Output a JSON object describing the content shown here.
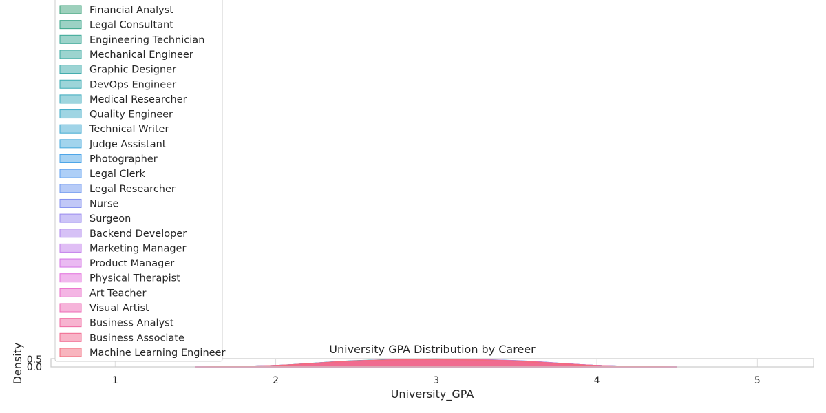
{
  "chart_data": {
    "type": "area",
    "title": "University GPA Distribution by Career",
    "xlabel": "University_GPA",
    "ylabel": "Density",
    "xlim": [
      0.6,
      5.35
    ],
    "ylim": [
      0,
      0.55
    ],
    "xticks": [
      "1",
      "2",
      "3",
      "4",
      "5"
    ],
    "yticks": [
      "0.0",
      "0.5"
    ],
    "grid": true,
    "legend_placement": "upper-left",
    "series": [
      {
        "name": "Financial Analyst",
        "color": "#3ba27a",
        "x": [
          1.5,
          2.0,
          2.5,
          3.0,
          3.5,
          4.0,
          4.5
        ],
        "y": [
          0.0,
          0.09,
          0.4,
          0.55,
          0.38,
          0.08,
          0.0
        ]
      },
      {
        "name": "Legal Consultant",
        "color": "#3aa58a",
        "x": [
          1.5,
          2.0,
          2.5,
          3.0,
          3.5,
          4.0,
          4.5
        ],
        "y": [
          0.0,
          0.08,
          0.38,
          0.52,
          0.4,
          0.1,
          0.0
        ]
      },
      {
        "name": "Engineering Technician",
        "color": "#39a795",
        "x": [
          1.5,
          2.0,
          2.5,
          3.0,
          3.5,
          4.0,
          4.5
        ],
        "y": [
          0.0,
          0.1,
          0.42,
          0.5,
          0.36,
          0.08,
          0.0
        ]
      },
      {
        "name": "Mechanical Engineer",
        "color": "#39a9a0",
        "x": [
          1.5,
          2.0,
          2.5,
          3.0,
          3.5,
          4.0,
          4.5
        ],
        "y": [
          0.0,
          0.08,
          0.37,
          0.51,
          0.39,
          0.09,
          0.0
        ]
      },
      {
        "name": "Graphic Designer",
        "color": "#3aaaaa",
        "x": [
          1.5,
          2.0,
          2.5,
          3.0,
          3.5,
          4.0,
          4.5
        ],
        "y": [
          0.0,
          0.09,
          0.39,
          0.49,
          0.4,
          0.1,
          0.0
        ]
      },
      {
        "name": "DevOps Engineer",
        "color": "#3babb3",
        "x": [
          1.5,
          2.0,
          2.5,
          3.0,
          3.5,
          4.0,
          4.5
        ],
        "y": [
          0.0,
          0.07,
          0.36,
          0.52,
          0.41,
          0.1,
          0.0
        ]
      },
      {
        "name": "Medical Researcher",
        "color": "#3dabbd",
        "x": [
          1.5,
          2.0,
          2.5,
          3.0,
          3.5,
          4.0,
          4.5
        ],
        "y": [
          0.0,
          0.1,
          0.4,
          0.5,
          0.37,
          0.08,
          0.0
        ]
      },
      {
        "name": "Quality Engineer",
        "color": "#3fabc7",
        "x": [
          1.5,
          2.0,
          2.5,
          3.0,
          3.5,
          4.0,
          4.5
        ],
        "y": [
          0.0,
          0.08,
          0.38,
          0.51,
          0.39,
          0.09,
          0.0
        ]
      },
      {
        "name": "Technical Writer",
        "color": "#42aad1",
        "x": [
          1.5,
          2.0,
          2.5,
          3.0,
          3.5,
          4.0,
          4.5
        ],
        "y": [
          0.0,
          0.09,
          0.37,
          0.5,
          0.4,
          0.1,
          0.0
        ]
      },
      {
        "name": "Judge Assistant",
        "color": "#46a9dc",
        "x": [
          1.5,
          2.0,
          2.5,
          3.0,
          3.5,
          4.0,
          4.5
        ],
        "y": [
          0.0,
          0.08,
          0.39,
          0.52,
          0.38,
          0.09,
          0.0
        ]
      },
      {
        "name": "Photographer",
        "color": "#4ea6e8",
        "x": [
          1.5,
          2.0,
          2.5,
          3.0,
          3.5,
          4.0,
          4.5
        ],
        "y": [
          0.0,
          0.1,
          0.41,
          0.5,
          0.37,
          0.08,
          0.0
        ]
      },
      {
        "name": "Legal Clerk",
        "color": "#5e9ff0",
        "x": [
          1.5,
          2.0,
          2.5,
          3.0,
          3.5,
          4.0,
          4.5
        ],
        "y": [
          0.0,
          0.08,
          0.36,
          0.51,
          0.42,
          0.1,
          0.0
        ]
      },
      {
        "name": "Legal Researcher",
        "color": "#7098f0",
        "x": [
          1.5,
          2.0,
          2.5,
          3.0,
          3.5,
          4.0,
          4.5
        ],
        "y": [
          0.0,
          0.09,
          0.38,
          0.5,
          0.4,
          0.09,
          0.0
        ]
      },
      {
        "name": "Nurse",
        "color": "#8491f0",
        "x": [
          1.5,
          2.0,
          2.5,
          3.0,
          3.5,
          4.0,
          4.5
        ],
        "y": [
          0.0,
          0.08,
          0.37,
          0.52,
          0.39,
          0.1,
          0.0
        ]
      },
      {
        "name": "Surgeon",
        "color": "#998aef",
        "x": [
          1.5,
          2.0,
          2.5,
          3.0,
          3.5,
          4.0,
          4.5
        ],
        "y": [
          0.0,
          0.1,
          0.4,
          0.49,
          0.38,
          0.08,
          0.0
        ]
      },
      {
        "name": "Backend Developer",
        "color": "#ad84ee",
        "x": [
          1.5,
          2.0,
          2.5,
          3.0,
          3.5,
          4.0,
          4.5
        ],
        "y": [
          0.0,
          0.09,
          0.38,
          0.51,
          0.39,
          0.09,
          0.0
        ]
      },
      {
        "name": "Marketing Manager",
        "color": "#c27deb",
        "x": [
          1.5,
          2.0,
          2.5,
          3.0,
          3.5,
          4.0,
          4.5
        ],
        "y": [
          0.0,
          0.08,
          0.37,
          0.5,
          0.41,
          0.1,
          0.0
        ]
      },
      {
        "name": "Product Manager",
        "color": "#d575e6",
        "x": [
          1.5,
          2.0,
          2.5,
          3.0,
          3.5,
          4.0,
          4.5
        ],
        "y": [
          0.0,
          0.09,
          0.39,
          0.51,
          0.38,
          0.09,
          0.0
        ]
      },
      {
        "name": "Physical Therapist",
        "color": "#e36fdc",
        "x": [
          1.5,
          2.0,
          2.5,
          3.0,
          3.5,
          4.0,
          4.5
        ],
        "y": [
          0.0,
          0.1,
          0.4,
          0.5,
          0.37,
          0.08,
          0.0
        ]
      },
      {
        "name": "Art Teacher",
        "color": "#ea6cc9",
        "x": [
          1.5,
          2.0,
          2.5,
          3.0,
          3.5,
          4.0,
          4.5
        ],
        "y": [
          0.0,
          0.08,
          0.37,
          0.52,
          0.4,
          0.1,
          0.0
        ]
      },
      {
        "name": "Visual Artist",
        "color": "#ee6ab5",
        "x": [
          1.5,
          2.0,
          2.5,
          3.0,
          3.5,
          4.0,
          4.5
        ],
        "y": [
          0.0,
          0.09,
          0.38,
          0.5,
          0.39,
          0.09,
          0.0
        ]
      },
      {
        "name": "Business Analyst",
        "color": "#f06aa1",
        "x": [
          1.5,
          2.0,
          2.5,
          3.0,
          3.5,
          4.0,
          4.5
        ],
        "y": [
          0.0,
          0.08,
          0.39,
          0.51,
          0.38,
          0.1,
          0.0
        ]
      },
      {
        "name": "Business Associate",
        "color": "#f16a8f",
        "x": [
          1.5,
          2.0,
          2.5,
          3.0,
          3.5,
          4.0,
          4.5
        ],
        "y": [
          0.0,
          0.09,
          0.37,
          0.5,
          0.4,
          0.09,
          0.0
        ]
      },
      {
        "name": "Machine Learning Engineer",
        "color": "#f26b7d",
        "x": [
          1.5,
          2.0,
          2.5,
          3.0,
          3.5,
          4.0,
          4.5
        ],
        "y": [
          0.0,
          0.1,
          0.4,
          0.48,
          0.36,
          0.08,
          0.0
        ]
      }
    ]
  }
}
